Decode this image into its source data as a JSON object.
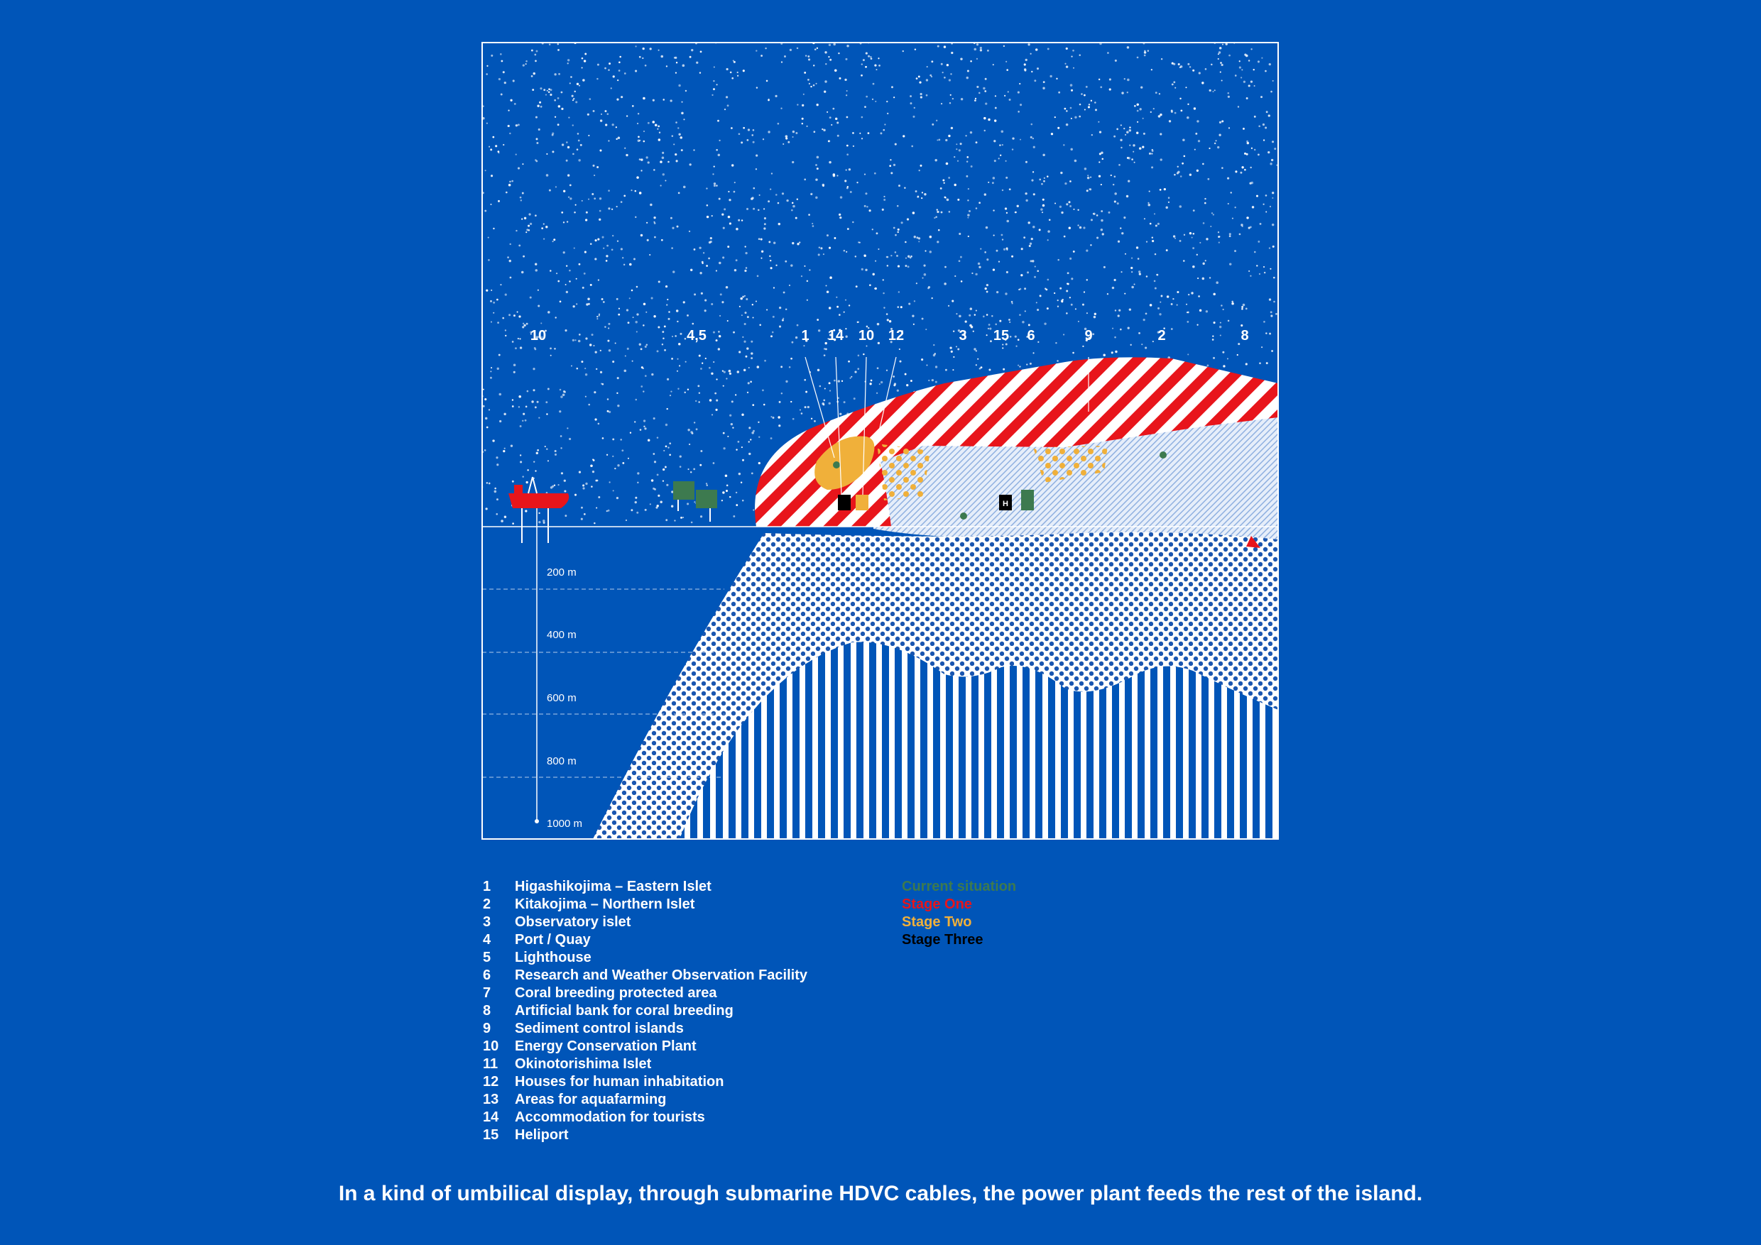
{
  "colors": {
    "background": "#0055b8",
    "current": "#3d7a4f",
    "stage_one": "#e8151b",
    "stage_two": "#f0b03a",
    "stage_three": "#000000"
  },
  "map_labels": [
    "10",
    "4,5",
    "1",
    "14",
    "10",
    "12",
    "3",
    "15",
    "6",
    "9",
    "2",
    "8"
  ],
  "depth_labels": [
    "200 m",
    "400 m",
    "600 m",
    "800 m",
    "1000 m"
  ],
  "legend": [
    {
      "num": "1",
      "text": "Higashikojima – Eastern Islet"
    },
    {
      "num": "2",
      "text": "Kitakojima – Northern Islet"
    },
    {
      "num": "3",
      "text": "Observatory islet"
    },
    {
      "num": "4",
      "text": "Port / Quay"
    },
    {
      "num": "5",
      "text": "Lighthouse"
    },
    {
      "num": "6",
      "text": "Research and Weather Observation Facility"
    },
    {
      "num": "7",
      "text": "Coral breeding protected area"
    },
    {
      "num": "8",
      "text": "Artificial bank for coral breeding"
    },
    {
      "num": "9",
      "text": "Sediment control islands"
    },
    {
      "num": "10",
      "text": "Energy Conservation Plant"
    },
    {
      "num": "11",
      "text": "Okinotorishima Islet"
    },
    {
      "num": "12",
      "text": "Houses for human inhabitation"
    },
    {
      "num": "13",
      "text": "Areas for aquafarming"
    },
    {
      "num": "14",
      "text": "Accommodation for tourists"
    },
    {
      "num": "15",
      "text": "Heliport"
    }
  ],
  "stages": [
    "Current situation",
    "Stage One",
    "Stage Two",
    "Stage Three"
  ],
  "facility_marks": {
    "heliport": "H"
  },
  "caption": "In a kind of umbilical display, through submarine HDVC cables, the power plant feeds the rest of the island."
}
